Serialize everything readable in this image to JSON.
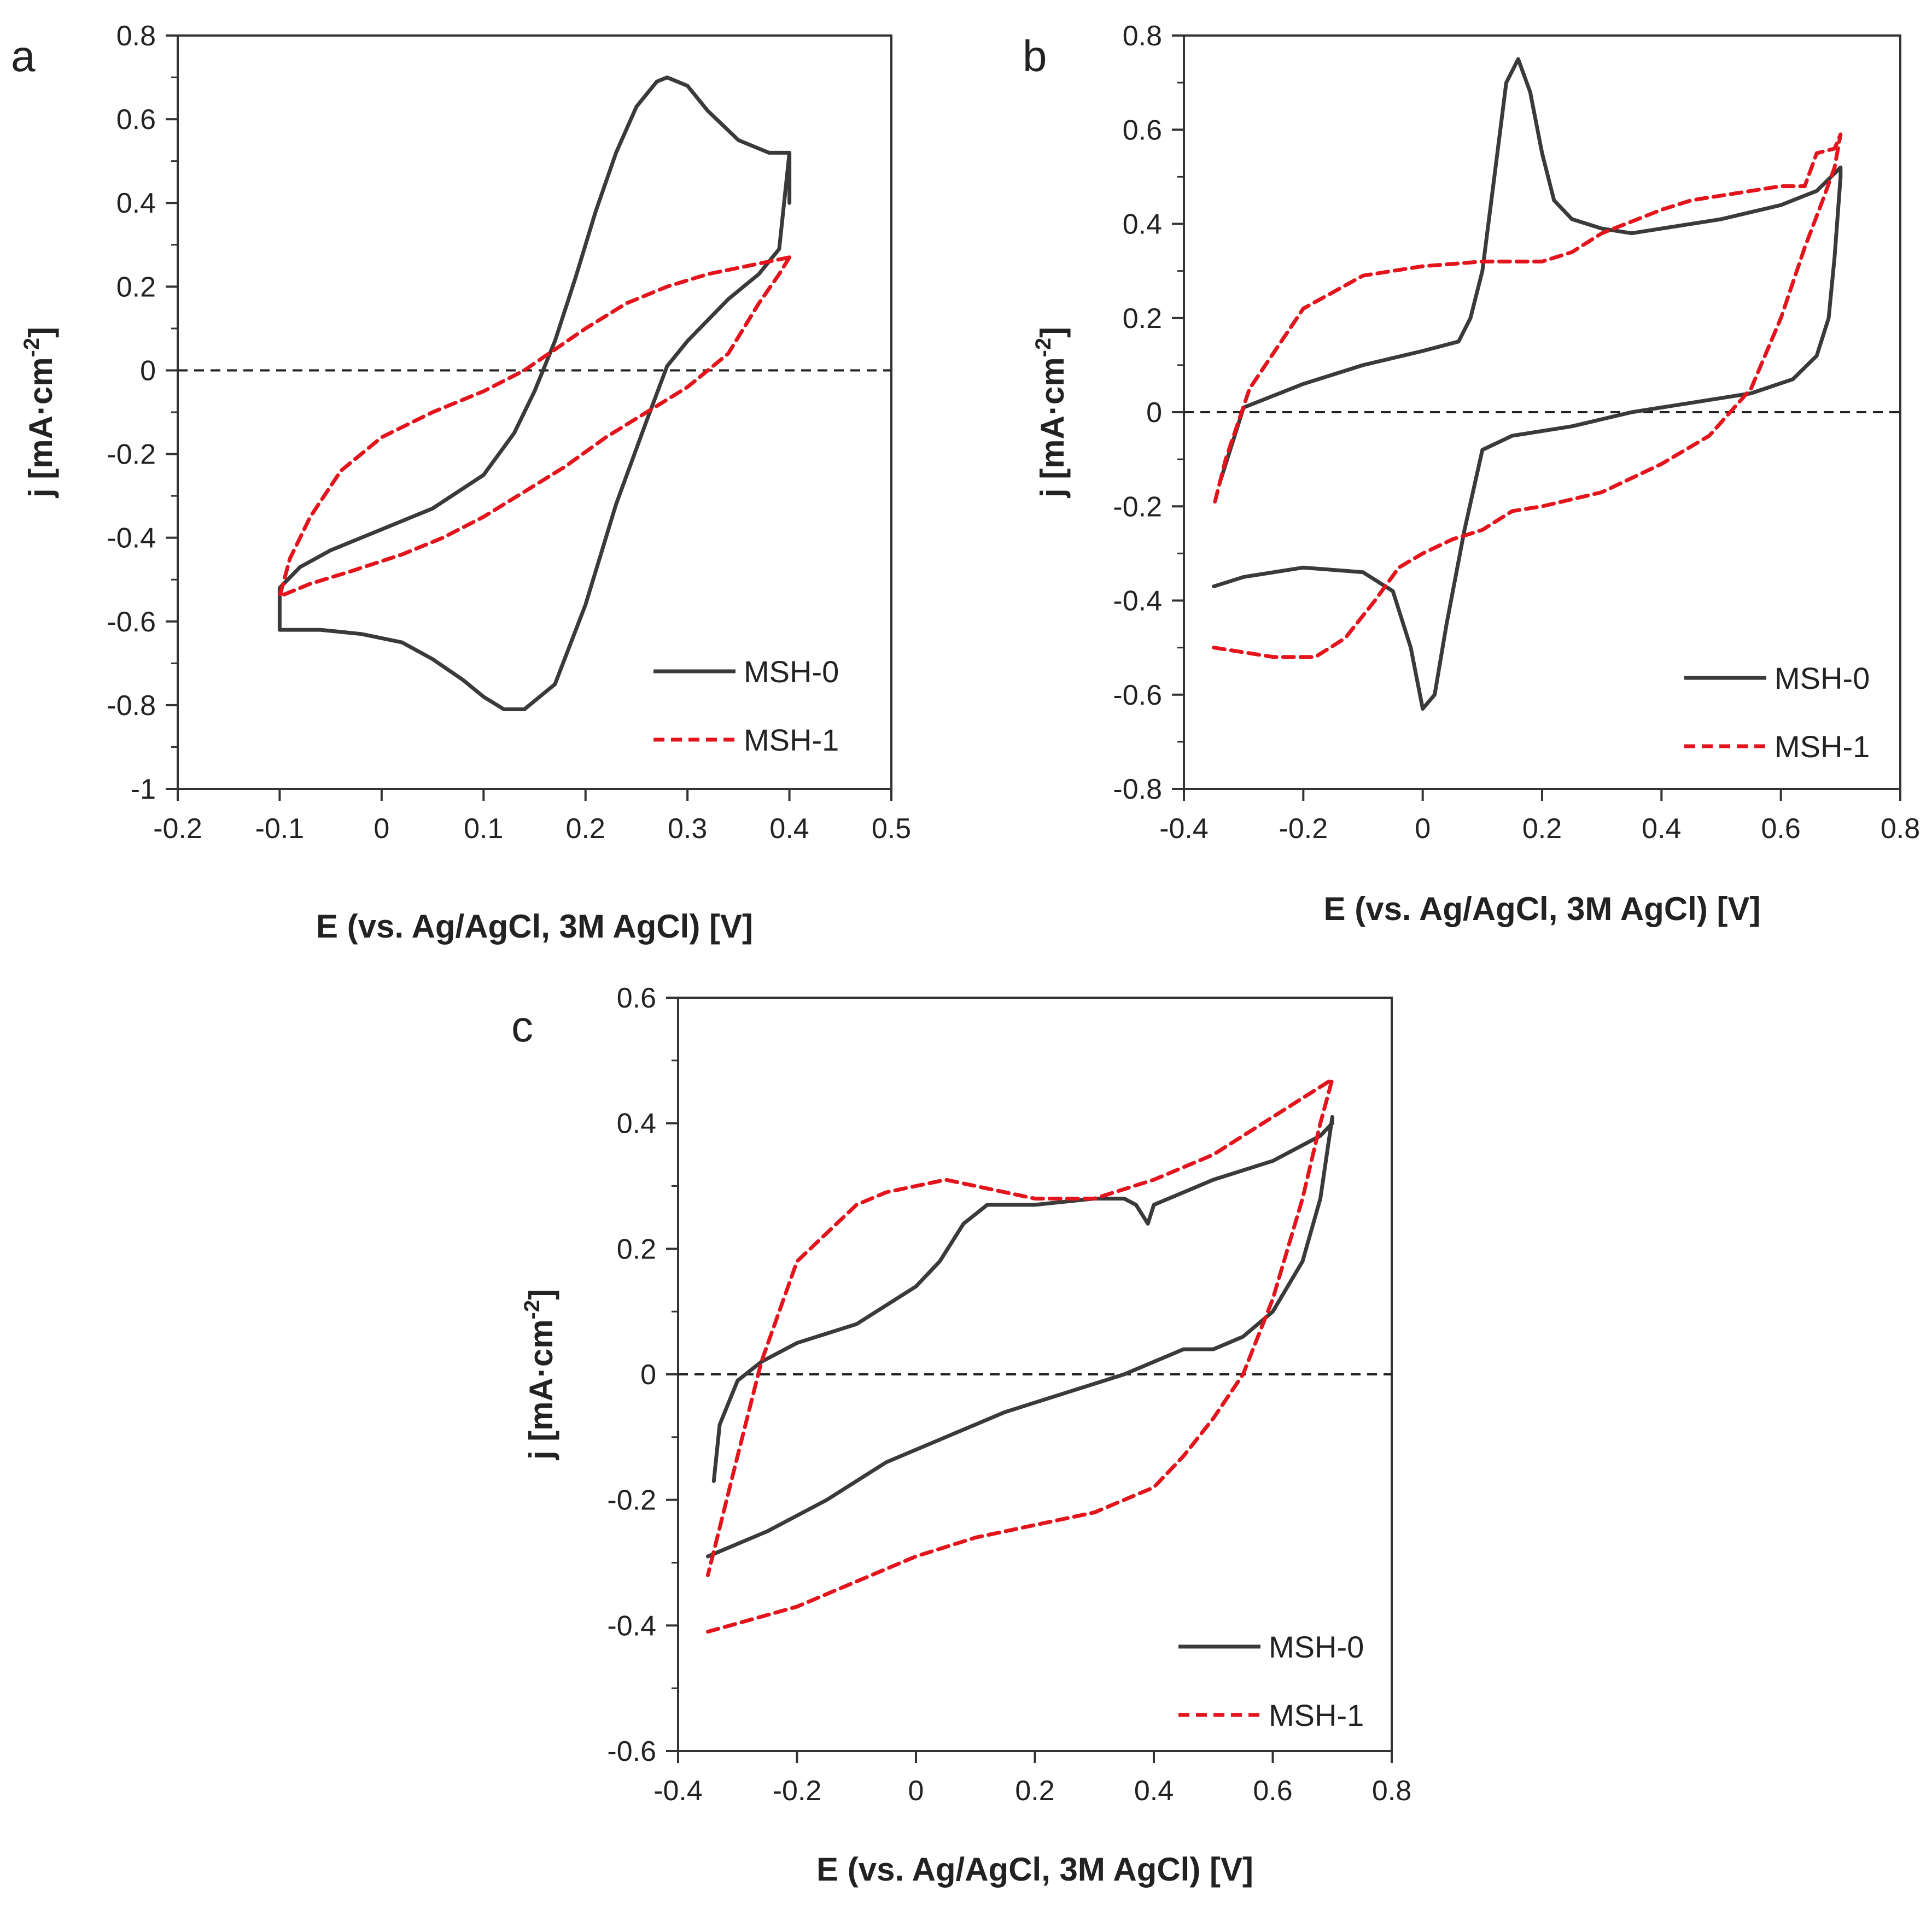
{
  "colors": {
    "msh0": "#3a3a3a",
    "msh1": "#e3141c",
    "axis": "#333333",
    "zero_line": "#222222"
  },
  "chart_data": [
    {
      "panel_label": "a",
      "type": "line",
      "xlabel": "E (vs. Ag/AgCl, 3M AgCl) [V]",
      "ylabel_main": "j [mA·cm",
      "ylabel_sup": "-2",
      "ylabel_tail": "]",
      "xlim": [
        -0.2,
        0.5
      ],
      "ylim": [
        -1,
        0.8
      ],
      "xticks": [
        -0.2,
        -0.1,
        0,
        0.1,
        0.2,
        0.3,
        0.4,
        0.5
      ],
      "xtick_labels": [
        "-0.2",
        "-0.1",
        "0",
        "0.1",
        "0.2",
        "0.3",
        "0.4",
        "0.5"
      ],
      "yticks": [
        -1,
        -0.8,
        -0.6,
        -0.4,
        -0.2,
        0,
        0.2,
        0.4,
        0.6,
        0.8
      ],
      "ytick_labels": [
        "-1",
        "-0.8",
        "-0.6",
        "-0.4",
        "-0.2",
        "0",
        "0.2",
        "0.4",
        "0.6",
        "0.8"
      ],
      "legend": "bottom-right",
      "series": [
        {
          "name": "MSH-0",
          "style": "solid",
          "x": [
            0.4,
            0.4,
            0.39,
            0.37,
            0.34,
            0.32,
            0.3,
            0.28,
            0.26,
            0.23,
            0.2,
            0.17,
            0.14,
            0.12,
            0.1,
            0.08,
            0.05,
            0.02,
            -0.02,
            -0.06,
            -0.1,
            -0.1,
            -0.08,
            -0.05,
            0.0,
            0.05,
            0.1,
            0.13,
            0.15,
            0.17,
            0.19,
            0.21,
            0.23,
            0.25,
            0.27,
            0.28,
            0.3,
            0.32,
            0.35,
            0.38,
            0.4,
            0.4
          ],
          "y": [
            0.4,
            0.52,
            0.29,
            0.23,
            0.17,
            0.12,
            0.07,
            0.01,
            -0.12,
            -0.32,
            -0.56,
            -0.75,
            -0.81,
            -0.81,
            -0.78,
            -0.74,
            -0.69,
            -0.65,
            -0.63,
            -0.62,
            -0.62,
            -0.52,
            -0.47,
            -0.43,
            -0.38,
            -0.33,
            -0.25,
            -0.15,
            -0.05,
            0.07,
            0.22,
            0.38,
            0.52,
            0.63,
            0.69,
            0.7,
            0.68,
            0.62,
            0.55,
            0.52,
            0.52,
            0.4
          ]
        },
        {
          "name": "MSH-1",
          "style": "dashed",
          "x": [
            0.4,
            0.39,
            0.37,
            0.34,
            0.3,
            0.26,
            0.22,
            0.18,
            0.14,
            0.1,
            0.06,
            0.02,
            -0.03,
            -0.07,
            -0.1,
            -0.09,
            -0.07,
            -0.04,
            0.0,
            0.05,
            0.1,
            0.14,
            0.17,
            0.2,
            0.24,
            0.28,
            0.32,
            0.36,
            0.4,
            0.4
          ],
          "y": [
            0.27,
            0.23,
            0.16,
            0.04,
            -0.04,
            -0.1,
            -0.16,
            -0.23,
            -0.29,
            -0.35,
            -0.4,
            -0.44,
            -0.48,
            -0.51,
            -0.54,
            -0.45,
            -0.35,
            -0.24,
            -0.16,
            -0.1,
            -0.05,
            0.0,
            0.05,
            0.1,
            0.16,
            0.2,
            0.23,
            0.25,
            0.27,
            0.27
          ]
        }
      ]
    },
    {
      "panel_label": "b",
      "type": "line",
      "xlabel": "E (vs. Ag/AgCl, 3M AgCl) [V]",
      "ylabel_main": "j [mA·cm",
      "ylabel_sup": "-2",
      "ylabel_tail": "]",
      "xlim": [
        -0.4,
        0.8
      ],
      "ylim": [
        -0.8,
        0.8
      ],
      "xticks": [
        -0.4,
        -0.2,
        0,
        0.2,
        0.4,
        0.6,
        0.8
      ],
      "xtick_labels": [
        "-0.4",
        "-0.2",
        "0",
        "0.2",
        "0.4",
        "0.6",
        "0.8"
      ],
      "yticks": [
        -0.8,
        -0.6,
        -0.4,
        -0.2,
        0,
        0.2,
        0.4,
        0.6,
        0.8
      ],
      "ytick_labels": [
        "-0.8",
        "-0.6",
        "-0.4",
        "-0.2",
        "0",
        "0.2",
        "0.4",
        "0.6",
        "0.8"
      ],
      "legend": "bottom-right",
      "series": [
        {
          "name": "MSH-0",
          "style": "solid",
          "x": [
            -0.35,
            -0.3,
            -0.2,
            -0.1,
            -0.05,
            -0.02,
            0.0,
            0.02,
            0.04,
            0.07,
            0.1,
            0.15,
            0.25,
            0.35,
            0.45,
            0.55,
            0.62,
            0.66,
            0.68,
            0.69,
            0.7,
            0.7,
            0.66,
            0.6,
            0.5,
            0.4,
            0.35,
            0.3,
            0.25,
            0.22,
            0.2,
            0.18,
            0.16,
            0.14,
            0.12,
            0.1,
            0.08,
            0.06,
            0.0,
            -0.1,
            -0.2,
            -0.3,
            -0.34
          ],
          "y": [
            -0.37,
            -0.35,
            -0.33,
            -0.34,
            -0.38,
            -0.5,
            -0.63,
            -0.6,
            -0.45,
            -0.25,
            -0.08,
            -0.05,
            -0.03,
            0.0,
            0.02,
            0.04,
            0.07,
            0.12,
            0.2,
            0.33,
            0.5,
            0.52,
            0.47,
            0.44,
            0.41,
            0.39,
            0.38,
            0.39,
            0.41,
            0.45,
            0.55,
            0.68,
            0.75,
            0.7,
            0.5,
            0.3,
            0.2,
            0.15,
            0.13,
            0.1,
            0.06,
            0.01,
            -0.15
          ]
        },
        {
          "name": "MSH-1",
          "style": "dashed",
          "x": [
            -0.35,
            -0.25,
            -0.18,
            -0.13,
            -0.08,
            -0.04,
            0.0,
            0.05,
            0.1,
            0.15,
            0.2,
            0.3,
            0.4,
            0.48,
            0.55,
            0.6,
            0.64,
            0.67,
            0.69,
            0.7,
            0.69,
            0.66,
            0.64,
            0.6,
            0.55,
            0.5,
            0.45,
            0.4,
            0.3,
            0.25,
            0.2,
            0.1,
            0.0,
            -0.1,
            -0.2,
            -0.29,
            -0.33,
            -0.35
          ],
          "y": [
            -0.5,
            -0.52,
            -0.52,
            -0.48,
            -0.4,
            -0.33,
            -0.3,
            -0.27,
            -0.25,
            -0.21,
            -0.2,
            -0.17,
            -0.11,
            -0.05,
            0.05,
            0.2,
            0.35,
            0.45,
            0.52,
            0.59,
            0.56,
            0.55,
            0.48,
            0.48,
            0.47,
            0.46,
            0.45,
            0.43,
            0.38,
            0.34,
            0.32,
            0.32,
            0.31,
            0.29,
            0.22,
            0.05,
            -0.1,
            -0.2
          ]
        }
      ]
    },
    {
      "panel_label": "c",
      "type": "line",
      "xlabel": "E (vs. Ag/AgCl, 3M AgCl) [V]",
      "ylabel_main": "j [mA·cm",
      "ylabel_sup": "-2",
      "ylabel_tail": "]",
      "xlim": [
        -0.4,
        0.8
      ],
      "ylim": [
        -0.6,
        0.6
      ],
      "xticks": [
        -0.4,
        -0.2,
        0,
        0.2,
        0.4,
        0.6,
        0.8
      ],
      "xtick_labels": [
        "-0.4",
        "-0.2",
        "0",
        "0.2",
        "0.4",
        "0.6",
        "0.8"
      ],
      "yticks": [
        -0.6,
        -0.4,
        -0.2,
        0,
        0.2,
        0.4,
        0.6
      ],
      "ytick_labels": [
        "-0.6",
        "-0.4",
        "-0.2",
        "0",
        "0.2",
        "0.4",
        "0.6"
      ],
      "legend": "bottom-right",
      "series": [
        {
          "name": "MSH-0",
          "style": "solid",
          "x": [
            -0.35,
            -0.25,
            -0.15,
            -0.05,
            0.05,
            0.15,
            0.25,
            0.35,
            0.45,
            0.48,
            0.5,
            0.55,
            0.6,
            0.65,
            0.68,
            0.7,
            0.7,
            0.68,
            0.6,
            0.5,
            0.45,
            0.4,
            0.39,
            0.37,
            0.35,
            0.3,
            0.2,
            0.12,
            0.08,
            0.04,
            0.0,
            -0.05,
            -0.1,
            -0.2,
            -0.26,
            -0.3,
            -0.33,
            -0.34
          ],
          "y": [
            -0.29,
            -0.25,
            -0.2,
            -0.14,
            -0.1,
            -0.06,
            -0.03,
            0.0,
            0.04,
            0.04,
            0.04,
            0.06,
            0.1,
            0.18,
            0.28,
            0.41,
            0.4,
            0.38,
            0.34,
            0.31,
            0.29,
            0.27,
            0.24,
            0.27,
            0.28,
            0.28,
            0.27,
            0.27,
            0.24,
            0.18,
            0.14,
            0.11,
            0.08,
            0.05,
            0.02,
            -0.01,
            -0.08,
            -0.17
          ]
        },
        {
          "name": "MSH-1",
          "style": "dashed",
          "x": [
            -0.35,
            -0.2,
            -0.1,
            0.0,
            0.1,
            0.2,
            0.3,
            0.4,
            0.45,
            0.5,
            0.55,
            0.6,
            0.65,
            0.68,
            0.7,
            0.7,
            0.6,
            0.5,
            0.4,
            0.3,
            0.2,
            0.1,
            0.05,
            0.0,
            -0.05,
            -0.1,
            -0.2,
            -0.26,
            -0.3,
            -0.35
          ],
          "y": [
            -0.41,
            -0.37,
            -0.33,
            -0.29,
            -0.26,
            -0.24,
            -0.22,
            -0.18,
            -0.13,
            -0.07,
            0.0,
            0.12,
            0.28,
            0.4,
            0.47,
            0.47,
            0.41,
            0.35,
            0.31,
            0.28,
            0.28,
            0.3,
            0.31,
            0.3,
            0.29,
            0.27,
            0.18,
            0.02,
            -0.13,
            -0.32
          ]
        }
      ]
    }
  ]
}
